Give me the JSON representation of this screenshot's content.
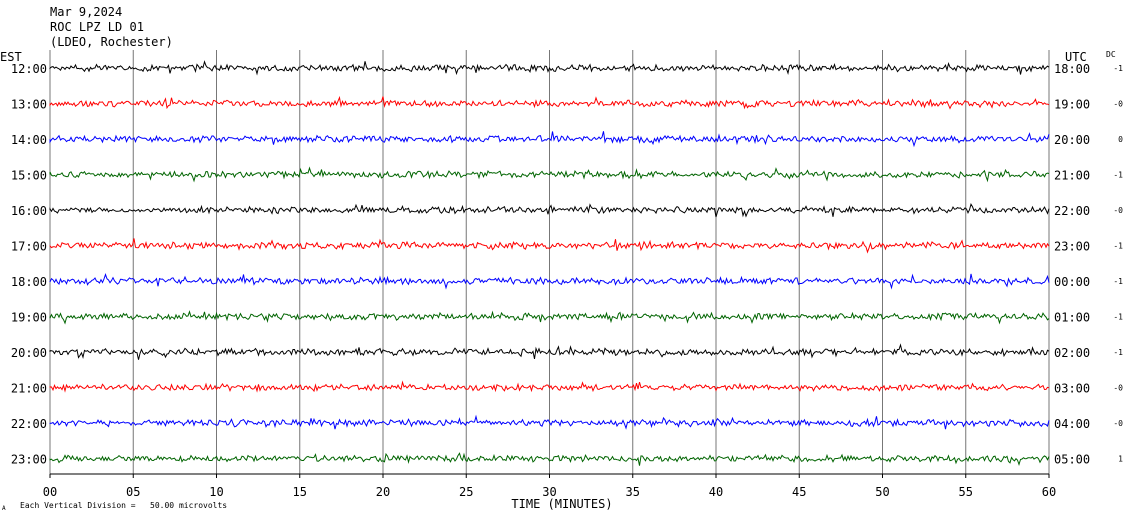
{
  "header": {
    "date": "Mar 9,2024",
    "station": "ROC LPZ LD 01",
    "network": "(LDEO, Rochester)"
  },
  "left_axis_title": "EST",
  "right_axis_title": "UTC",
  "dc_title": "DC",
  "footer": {
    "vertical_division": "Each Vertical Division =   50.00 microvolts",
    "corner_mark": "A"
  },
  "trace_colors": [
    "#000000",
    "#ff0000",
    "#0000ff",
    "#006400"
  ],
  "chart_data": {
    "type": "line",
    "xlabel": "TIME (MINUTES)",
    "xlim": [
      0,
      60
    ],
    "x_ticks": [
      "00",
      "05",
      "10",
      "15",
      "20",
      "25",
      "30",
      "35",
      "40",
      "45",
      "50",
      "55",
      "60"
    ],
    "rows": [
      {
        "est": "12:00",
        "utc": "18:00",
        "dc": "-1"
      },
      {
        "est": "13:00",
        "utc": "19:00",
        "dc": "-0"
      },
      {
        "est": "14:00",
        "utc": "20:00",
        "dc": "0"
      },
      {
        "est": "15:00",
        "utc": "21:00",
        "dc": "-1"
      },
      {
        "est": "16:00",
        "utc": "22:00",
        "dc": "-0"
      },
      {
        "est": "17:00",
        "utc": "23:00",
        "dc": "-1"
      },
      {
        "est": "18:00",
        "utc": "00:00",
        "dc": "-1"
      },
      {
        "est": "19:00",
        "utc": "01:00",
        "dc": "-1"
      },
      {
        "est": "20:00",
        "utc": "02:00",
        "dc": "-1"
      },
      {
        "est": "21:00",
        "utc": "03:00",
        "dc": "-0"
      },
      {
        "est": "22:00",
        "utc": "04:00",
        "dc": "-0"
      },
      {
        "est": "23:00",
        "utc": "05:00",
        "dc": "1"
      }
    ]
  }
}
